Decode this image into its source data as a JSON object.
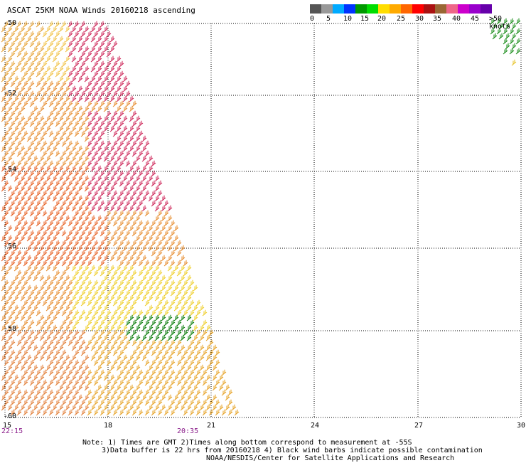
{
  "title": "ASCAT 25KM NOAA Winds 20160218 ascending",
  "colorbar": {
    "labels": [
      "0",
      "5",
      "10",
      "15",
      "20",
      "25",
      "30",
      "35",
      "40",
      "45",
      ">50 knots"
    ],
    "colors": [
      "#555555",
      "#999999",
      "#00aaff",
      "#0033ff",
      "#009900",
      "#00dd00",
      "#ffdd00",
      "#ffaa00",
      "#ff6600",
      "#ff0000",
      "#aa1111",
      "#996633",
      "#ee6688",
      "#cc00cc",
      "#9900cc",
      "#6600aa"
    ]
  },
  "map": {
    "lat_labels": [
      "-50",
      "-52",
      "-54",
      "-56",
      "-58",
      "-60"
    ],
    "lon_labels": [
      "15",
      "18",
      "21",
      "24",
      "27",
      "30"
    ],
    "lat_range": [
      -60,
      -50
    ],
    "lon_range": [
      15,
      30
    ],
    "times": [
      "22:15",
      "20:35"
    ]
  },
  "notes": {
    "line1": "Note: 1) Times are GMT 2)Times along bottom correspond to measurement at -55S",
    "line2": "3)Data buffer is 22 hrs from 20160218 4) Black wind barbs indicate possible contamination",
    "line3": "NOAA/NESDIS/Center for Satellite Applications and Research"
  }
}
